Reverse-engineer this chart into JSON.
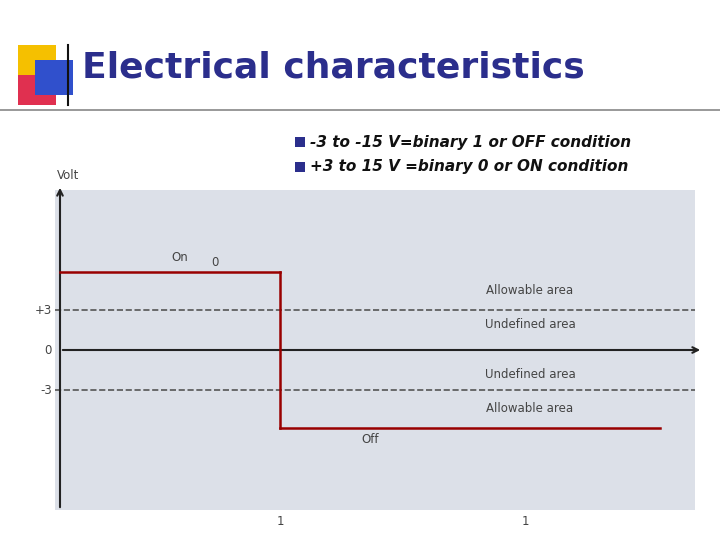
{
  "title": "Electrical characteristics",
  "title_color": "#2B2E8C",
  "title_fontsize": 26,
  "bullet1": "-3 to -15 V=binary 1 or OFF condition",
  "bullet2": "+3 to 15 V =binary 0 or ON condition",
  "bullet_fontsize": 11,
  "bg_color": "#ffffff",
  "chart_bg": "#dce0e8",
  "y_label": "Volt",
  "dashed_line_color": "#555555",
  "axis_color": "#222222",
  "signal_color": "#990000",
  "label_on": "On",
  "label_0_signal": "0",
  "label_off": "Off",
  "label_allowable_top": "Allowable area",
  "label_undefined_top": "Undefined area",
  "label_undefined_bot": "Undefined area",
  "label_allowable_bot": "Allowable area",
  "tick_label_p3": "+3",
  "tick_label_0": "0",
  "tick_label_m3": "-3",
  "x_tick1": "1",
  "x_tick2": "1",
  "bullet_sq_color": "#2B2E8C",
  "yellow_color": "#F5C000",
  "red_color": "#E03050",
  "blue_color": "#3050CC",
  "line_color": "#888888",
  "text_color": "#444444"
}
